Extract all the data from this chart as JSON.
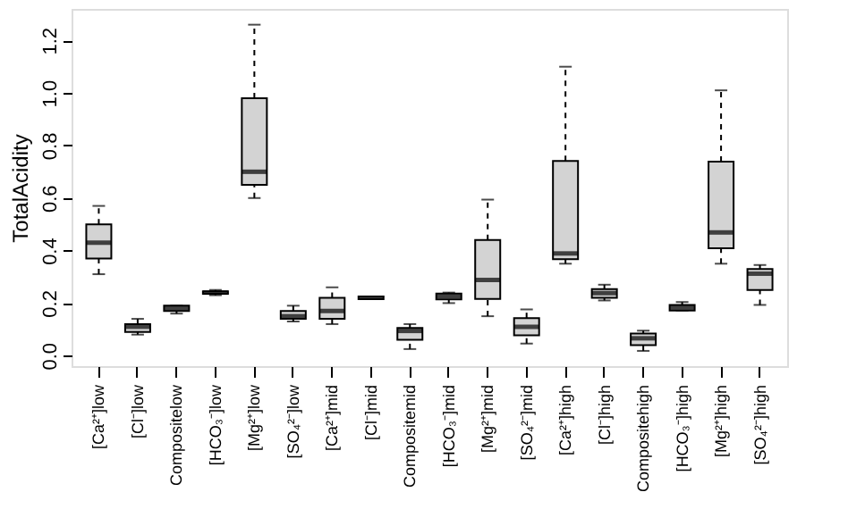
{
  "chart_data": {
    "type": "box",
    "ylabel": "TotalAcidity",
    "color": "#d3d3d3",
    "grid": false,
    "categories": [
      "[Ca²⁺]low",
      "[Cl⁻]low",
      "Compositelow",
      "[HCO₃⁻]low",
      "[Mg²⁺]low",
      "[SO₄²⁻]low",
      "[Ca²⁺]mid",
      "[Cl⁻]mid",
      "Compositemid",
      "[HCO₃⁻]mid",
      "[Mg²⁺]mid",
      "[SO₄²⁻]mid",
      "[Ca²⁺]high",
      "[Cl⁻]high",
      "Compositehigh",
      "[HCO₃⁻]high",
      "[Mg²⁺]high",
      "[SO₄²⁻]high"
    ],
    "boxes": [
      {
        "low": 0.31,
        "q1": 0.37,
        "median": 0.43,
        "q3": 0.5,
        "high": 0.57
      },
      {
        "low": 0.08,
        "q1": 0.09,
        "median": 0.11,
        "q3": 0.12,
        "high": 0.14
      },
      {
        "low": 0.16,
        "q1": 0.17,
        "median": 0.18,
        "q3": 0.19,
        "high": 0.19
      },
      {
        "low": 0.23,
        "q1": 0.235,
        "median": 0.24,
        "q3": 0.245,
        "high": 0.25
      },
      {
        "low": 0.6,
        "q1": 0.65,
        "median": 0.7,
        "q3": 0.98,
        "high": 1.26
      },
      {
        "low": 0.13,
        "q1": 0.14,
        "median": 0.15,
        "q3": 0.17,
        "high": 0.19
      },
      {
        "low": 0.12,
        "q1": 0.14,
        "median": 0.17,
        "q3": 0.22,
        "high": 0.26
      },
      {
        "low": 0.215,
        "q1": 0.215,
        "median": 0.22,
        "q3": 0.225,
        "high": 0.225
      },
      {
        "low": 0.025,
        "q1": 0.06,
        "median": 0.094,
        "q3": 0.105,
        "high": 0.12
      },
      {
        "low": 0.2,
        "q1": 0.214,
        "median": 0.226,
        "q3": 0.236,
        "high": 0.24
      },
      {
        "low": 0.15,
        "q1": 0.216,
        "median": 0.288,
        "q3": 0.44,
        "high": 0.594
      },
      {
        "low": 0.046,
        "q1": 0.077,
        "median": 0.11,
        "q3": 0.143,
        "high": 0.176
      },
      {
        "low": 0.35,
        "q1": 0.367,
        "median": 0.389,
        "q3": 0.741,
        "high": 1.1
      },
      {
        "low": 0.21,
        "q1": 0.22,
        "median": 0.238,
        "q3": 0.253,
        "high": 0.27
      },
      {
        "low": 0.018,
        "q1": 0.04,
        "median": 0.066,
        "q3": 0.084,
        "high": 0.095
      },
      {
        "low": 0.172,
        "q1": 0.172,
        "median": 0.183,
        "q3": 0.193,
        "high": 0.204
      },
      {
        "low": 0.35,
        "q1": 0.409,
        "median": 0.469,
        "q3": 0.739,
        "high": 1.01
      },
      {
        "low": 0.193,
        "q1": 0.25,
        "median": 0.312,
        "q3": 0.33,
        "high": 0.345
      }
    ],
    "ylim": [
      -0.04,
      1.32
    ],
    "yticks": [
      {
        "value": 0,
        "label": "0.0"
      },
      {
        "value": 0.2,
        "label": "0.2"
      },
      {
        "value": 0.4,
        "label": "0.4"
      },
      {
        "value": 0.6,
        "label": "0.6"
      },
      {
        "value": 0.8,
        "label": "0.8"
      },
      {
        "value": 1.0,
        "label": "1.0"
      },
      {
        "value": 1.2,
        "label": "1.2"
      }
    ]
  }
}
